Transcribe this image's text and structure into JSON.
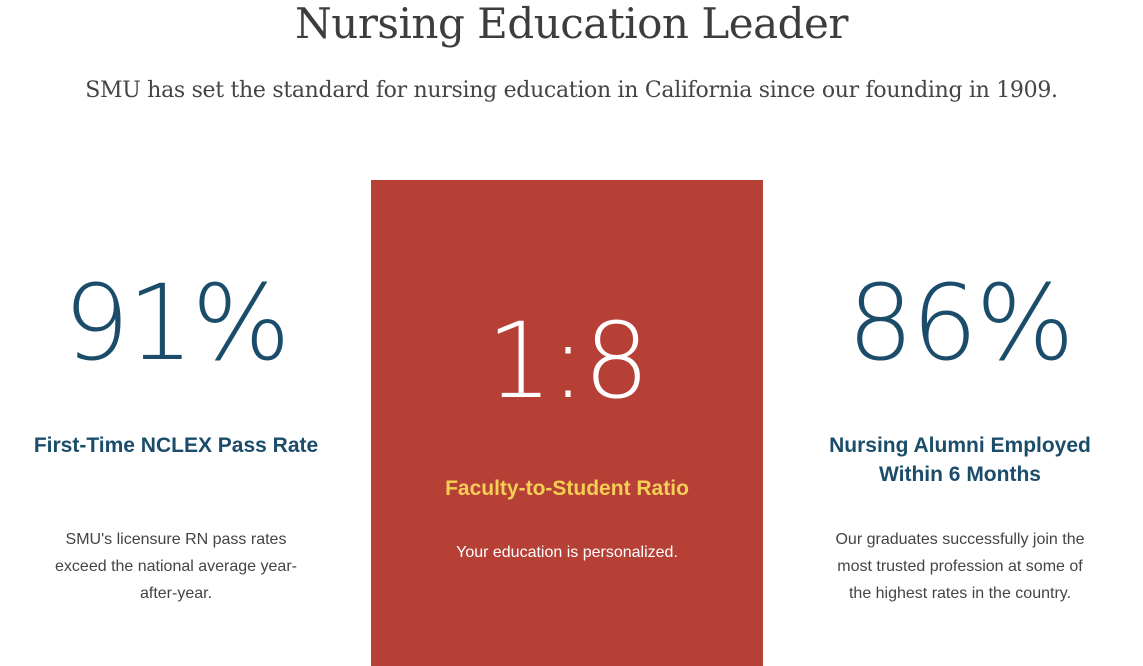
{
  "header": {
    "title": "Nursing Education Leader",
    "subtitle": "SMU has set the standard for nursing education in California since our founding in 1909."
  },
  "stats": [
    {
      "value": "91%",
      "label": "First-Time NCLEX Pass Rate",
      "description": "SMU's licensure RN pass rates exceed the national average year-after-year."
    },
    {
      "value": "1:8",
      "label": "Faculty-to-Student Ratio",
      "description": "Your education is personalized."
    },
    {
      "value": "86%",
      "label": "Nursing Alumni Employed Within 6 Months",
      "description": "Our graduates successfully join the most trusted profession at some of the highest rates in the country."
    }
  ],
  "colors": {
    "accent_red": "#b63f36",
    "stat_blue": "#1b4d6b",
    "highlight_yellow": "#f5cf55"
  }
}
